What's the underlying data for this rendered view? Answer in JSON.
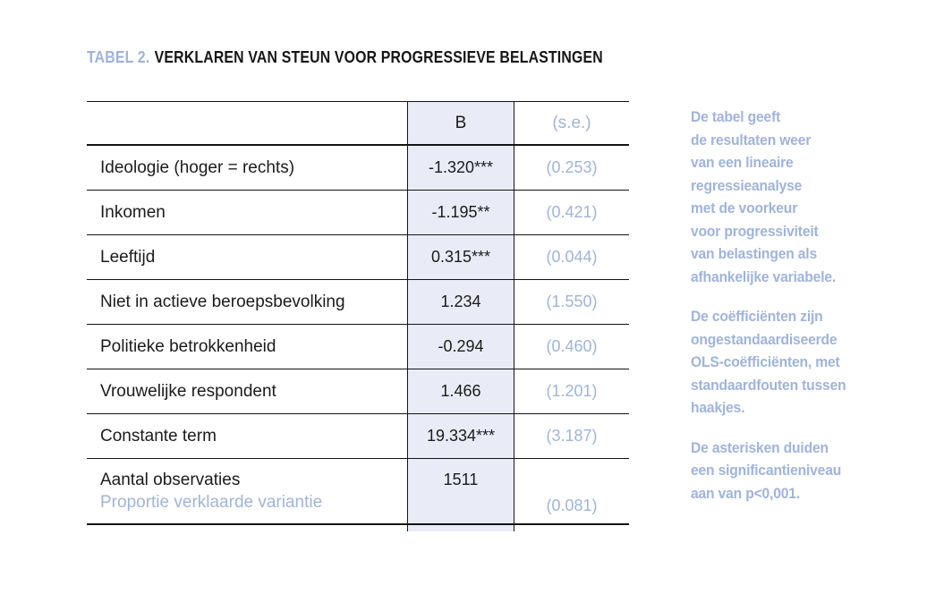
{
  "title": {
    "label": "TABEL 2.",
    "text": "VERKLAREN VAN STEUN VOOR PROGRESSIEVE BELASTINGEN"
  },
  "table": {
    "header": {
      "b": "B",
      "se": "(s.e.)"
    },
    "rows": [
      {
        "label": "Ideologie (hoger = rechts)",
        "b": "-1.320***",
        "se": "(0.253)"
      },
      {
        "label": "Inkomen",
        "b": "-1.195**",
        "se": "(0.421)"
      },
      {
        "label": "Leeftijd",
        "b": "0.315***",
        "se": "(0.044)"
      },
      {
        "label": "Niet in actieve beroepsbevolking",
        "b": "1.234",
        "se": "(1.550)"
      },
      {
        "label": "Politieke betrokkenheid",
        "b": "-0.294",
        "se": "(0.460)"
      },
      {
        "label": "Vrouwelijke respondent",
        "b": "1.466",
        "se": "(1.201)"
      },
      {
        "label": "Constante term",
        "b": "19.334***",
        "se": "(3.187)"
      }
    ],
    "footer": {
      "label_line1": "Aantal observaties",
      "label_line2": "Proportie verklaarde variantie",
      "b": "1511",
      "se": "(0.081)"
    }
  },
  "notes": {
    "para1": "De tabel geeft\nde resultaten weer\nvan een lineaire\nregressieanalyse\nmet de voorkeur\nvoor progressiviteit\nvan belastingen als\nafhankelijke variabele.",
    "para2": "De coëfficiënten zijn\nongestandaardiseerde\nOLS-coëfficiënten, met\nstandaardfouten tussen\nhaakjes.",
    "para3": "De asterisken duiden\neen significantieniveau\naan van p<0,001."
  },
  "colors": {
    "accent_blue": "#a0b4da",
    "column_shade": "#e9ecf6",
    "text_dark": "#1b1b1b",
    "rule_black": "#141414"
  }
}
